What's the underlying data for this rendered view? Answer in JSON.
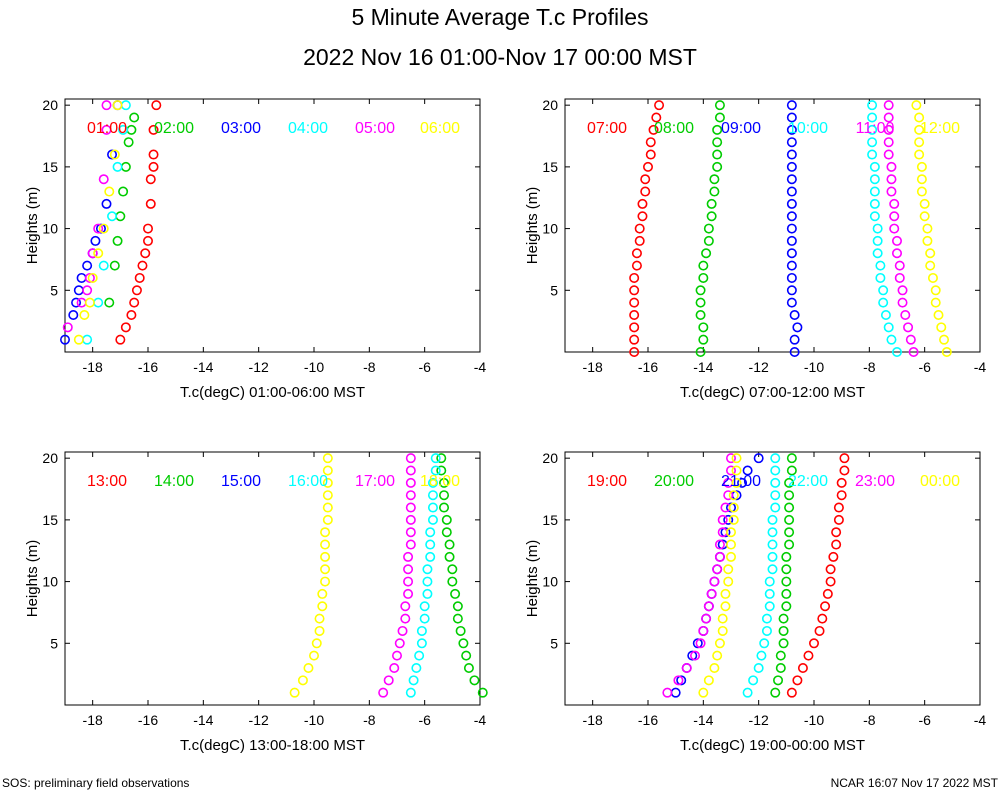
{
  "title": "5 Minute Average T.c Profiles",
  "subtitle": "2022 Nov 16 01:00-Nov 17 00:00 MST",
  "footer": {
    "left": "SOS: preliminary field observations",
    "right": "NCAR 16:07 Nov 17 2022 MST"
  },
  "colors": {
    "red": "#ff0000",
    "green": "#00cc00",
    "blue": "#0000ff",
    "cyan": "#00ffff",
    "magenta": "#ff00ff",
    "yellow": "#ffff00"
  },
  "chart_data": [
    {
      "type": "scatter",
      "xlabel": "T.c(degC) 01:00-06:00 MST",
      "ylabel": "Heights (m)",
      "xlim": [
        -19,
        -4
      ],
      "ylim": [
        0,
        20.5
      ],
      "xticks": [
        -18,
        -16,
        -14,
        -12,
        -10,
        -8,
        -6,
        -4
      ],
      "yticks": [
        5,
        10,
        15,
        20
      ],
      "series": [
        {
          "name": "01:00",
          "color": "#ff0000",
          "x": [
            -17.0,
            -16.8,
            -16.6,
            -16.5,
            -16.4,
            -16.3,
            -16.2,
            -16.1,
            -16.0,
            -16.0,
            -15.9,
            -15.9,
            -15.8,
            -15.8,
            -15.8,
            -15.7
          ],
          "y": [
            1,
            2,
            3,
            4,
            5,
            6,
            7,
            8,
            9,
            10,
            12,
            14,
            15,
            16,
            18,
            20
          ]
        },
        {
          "name": "02:00",
          "color": "#00cc00",
          "x": [
            -17.4,
            -17.2,
            -17.1,
            -17.0,
            -16.9,
            -16.8,
            -16.7,
            -16.6,
            -16.5
          ],
          "y": [
            4,
            7,
            9,
            11,
            13,
            15,
            17,
            18,
            19
          ]
        },
        {
          "name": "03:00",
          "color": "#0000ff",
          "x": [
            -19.0,
            -18.7,
            -18.6,
            -18.5,
            -18.4,
            -18.2,
            -18.0,
            -17.9,
            -17.7,
            -17.5,
            -17.3,
            -17.1
          ],
          "y": [
            1,
            3,
            4,
            5,
            6,
            7,
            8,
            9,
            10,
            12,
            16,
            20
          ]
        },
        {
          "name": "04:00",
          "color": "#00ffff",
          "x": [
            -18.2,
            -17.8,
            -17.6,
            -17.3,
            -17.1,
            -16.9,
            -16.8
          ],
          "y": [
            1,
            4,
            7,
            11,
            15,
            18,
            20
          ]
        },
        {
          "name": "05:00",
          "color": "#ff00ff",
          "x": [
            -18.9,
            -18.4,
            -18.2,
            -18.1,
            -18.0,
            -17.8,
            -17.6,
            -17.5,
            -17.5
          ],
          "y": [
            2,
            4,
            5,
            6,
            8,
            10,
            14,
            18,
            20
          ]
        },
        {
          "name": "06:00",
          "color": "#ffff00",
          "x": [
            -18.5,
            -18.3,
            -18.1,
            -18.0,
            -17.8,
            -17.6,
            -17.4,
            -17.2,
            -17.1
          ],
          "y": [
            1,
            3,
            4,
            6,
            8,
            10,
            13,
            16,
            20
          ]
        }
      ]
    },
    {
      "type": "scatter",
      "xlabel": "T.c(degC) 07:00-12:00 MST",
      "ylabel": "Heights (m)",
      "xlim": [
        -19,
        -4
      ],
      "ylim": [
        0,
        20.5
      ],
      "xticks": [
        -18,
        -16,
        -14,
        -12,
        -10,
        -8,
        -6,
        -4
      ],
      "yticks": [
        5,
        10,
        15,
        20
      ],
      "series": [
        {
          "name": "07:00",
          "color": "#ff0000",
          "x": [
            -16.5,
            -16.5,
            -16.5,
            -16.5,
            -16.5,
            -16.5,
            -16.5,
            -16.4,
            -16.4,
            -16.3,
            -16.3,
            -16.2,
            -16.2,
            -16.1,
            -16.1,
            -16.0,
            -15.9,
            -15.9,
            -15.8,
            -15.7,
            -15.6
          ],
          "y": [
            0,
            1,
            2,
            3,
            4,
            5,
            6,
            7,
            8,
            9,
            10,
            11,
            12,
            13,
            14,
            15,
            16,
            17,
            18,
            19,
            20
          ]
        },
        {
          "name": "08:00",
          "color": "#00cc00",
          "x": [
            -14.1,
            -14.0,
            -14.0,
            -14.1,
            -14.1,
            -14.1,
            -14.0,
            -14.0,
            -13.9,
            -13.8,
            -13.8,
            -13.7,
            -13.7,
            -13.6,
            -13.6,
            -13.5,
            -13.5,
            -13.5,
            -13.5,
            -13.4,
            -13.4
          ],
          "y": [
            0,
            1,
            2,
            3,
            4,
            5,
            6,
            7,
            8,
            9,
            10,
            11,
            12,
            13,
            14,
            15,
            16,
            17,
            18,
            19,
            20
          ]
        },
        {
          "name": "09:00",
          "color": "#0000ff",
          "x": [
            -10.7,
            -10.7,
            -10.6,
            -10.7,
            -10.8,
            -10.8,
            -10.8,
            -10.8,
            -10.8,
            -10.8,
            -10.8,
            -10.8,
            -10.8,
            -10.8,
            -10.8,
            -10.8,
            -10.8,
            -10.8,
            -10.8,
            -10.8,
            -10.8
          ],
          "y": [
            0,
            1,
            2,
            3,
            4,
            5,
            6,
            7,
            8,
            9,
            10,
            11,
            12,
            13,
            14,
            15,
            16,
            17,
            18,
            19,
            20
          ]
        },
        {
          "name": "10:00",
          "color": "#00ffff",
          "x": [
            -7.0,
            -7.2,
            -7.3,
            -7.4,
            -7.5,
            -7.5,
            -7.6,
            -7.6,
            -7.7,
            -7.7,
            -7.7,
            -7.8,
            -7.8,
            -7.8,
            -7.8,
            -7.8,
            -7.9,
            -7.9,
            -7.9,
            -7.9,
            -7.9
          ],
          "y": [
            0,
            1,
            2,
            3,
            4,
            5,
            6,
            7,
            8,
            9,
            10,
            11,
            12,
            13,
            14,
            15,
            16,
            17,
            18,
            19,
            20
          ]
        },
        {
          "name": "11:00",
          "color": "#ff00ff",
          "x": [
            -6.4,
            -6.5,
            -6.6,
            -6.7,
            -6.8,
            -6.8,
            -6.9,
            -6.9,
            -7.0,
            -7.0,
            -7.1,
            -7.1,
            -7.1,
            -7.2,
            -7.2,
            -7.2,
            -7.3,
            -7.3,
            -7.3,
            -7.3,
            -7.3
          ],
          "y": [
            0,
            1,
            2,
            3,
            4,
            5,
            6,
            7,
            8,
            9,
            10,
            11,
            12,
            13,
            14,
            15,
            16,
            17,
            18,
            19,
            20
          ]
        },
        {
          "name": "12:00",
          "color": "#ffff00",
          "x": [
            -5.2,
            -5.3,
            -5.4,
            -5.5,
            -5.6,
            -5.6,
            -5.7,
            -5.8,
            -5.8,
            -5.9,
            -5.9,
            -6.0,
            -6.0,
            -6.1,
            -6.1,
            -6.1,
            -6.2,
            -6.2,
            -6.2,
            -6.2,
            -6.3
          ],
          "y": [
            0,
            1,
            2,
            3,
            4,
            5,
            6,
            7,
            8,
            9,
            10,
            11,
            12,
            13,
            14,
            15,
            16,
            17,
            18,
            19,
            20
          ]
        }
      ]
    },
    {
      "type": "scatter",
      "xlabel": "T.c(degC) 13:00-18:00 MST",
      "ylabel": "Heights (m)",
      "xlim": [
        -19,
        -4
      ],
      "ylim": [
        0,
        20.5
      ],
      "xticks": [
        -18,
        -16,
        -14,
        -12,
        -10,
        -8,
        -6,
        -4
      ],
      "yticks": [
        5,
        10,
        15,
        20
      ],
      "series": [
        {
          "name": "13:00",
          "color": "#ff0000",
          "x": [],
          "y": []
        },
        {
          "name": "14:00",
          "color": "#00cc00",
          "x": [
            -3.9,
            -4.2,
            -4.4,
            -4.5,
            -4.6,
            -4.7,
            -4.8,
            -4.8,
            -4.9,
            -5.0,
            -5.0,
            -5.1,
            -5.1,
            -5.2,
            -5.2,
            -5.3,
            -5.3,
            -5.3,
            -5.4,
            -5.4
          ],
          "y": [
            1,
            2,
            3,
            4,
            5,
            6,
            7,
            8,
            9,
            10,
            11,
            12,
            13,
            14,
            15,
            16,
            17,
            18,
            19,
            20
          ]
        },
        {
          "name": "15:00",
          "color": "#0000ff",
          "x": [],
          "y": []
        },
        {
          "name": "16:00",
          "color": "#00ffff",
          "x": [
            -6.5,
            -6.4,
            -6.3,
            -6.2,
            -6.1,
            -6.1,
            -6.0,
            -6.0,
            -5.9,
            -5.9,
            -5.9,
            -5.8,
            -5.8,
            -5.8,
            -5.7,
            -5.7,
            -5.7,
            -5.7,
            -5.6,
            -5.6
          ],
          "y": [
            1,
            2,
            3,
            4,
            5,
            6,
            7,
            8,
            9,
            10,
            11,
            12,
            13,
            14,
            15,
            16,
            17,
            18,
            19,
            20
          ]
        },
        {
          "name": "17:00",
          "color": "#ff00ff",
          "x": [
            -7.5,
            -7.3,
            -7.1,
            -7.0,
            -6.9,
            -6.8,
            -6.7,
            -6.7,
            -6.6,
            -6.6,
            -6.6,
            -6.6,
            -6.5,
            -6.5,
            -6.5,
            -6.5,
            -6.5,
            -6.5,
            -6.5,
            -6.5
          ],
          "y": [
            1,
            2,
            3,
            4,
            5,
            6,
            7,
            8,
            9,
            10,
            11,
            12,
            13,
            14,
            15,
            16,
            17,
            18,
            19,
            20
          ]
        },
        {
          "name": "18:00",
          "color": "#ffff00",
          "x": [
            -10.7,
            -10.4,
            -10.2,
            -10.0,
            -9.9,
            -9.8,
            -9.8,
            -9.7,
            -9.7,
            -9.6,
            -9.6,
            -9.6,
            -9.6,
            -9.6,
            -9.5,
            -9.5,
            -9.5,
            -9.5,
            -9.5,
            -9.5
          ],
          "y": [
            1,
            2,
            3,
            4,
            5,
            6,
            7,
            8,
            9,
            10,
            11,
            12,
            13,
            14,
            15,
            16,
            17,
            18,
            19,
            20
          ]
        }
      ]
    },
    {
      "type": "scatter",
      "xlabel": "T.c(degC) 19:00-00:00 MST",
      "ylabel": "Heights (m)",
      "xlim": [
        -19,
        -4
      ],
      "ylim": [
        0,
        20.5
      ],
      "xticks": [
        -18,
        -16,
        -14,
        -12,
        -10,
        -8,
        -6,
        -4
      ],
      "yticks": [
        5,
        10,
        15,
        20
      ],
      "series": [
        {
          "name": "19:00",
          "color": "#ff0000",
          "x": [
            -10.8,
            -10.6,
            -10.4,
            -10.2,
            -10.0,
            -9.8,
            -9.7,
            -9.6,
            -9.5,
            -9.4,
            -9.4,
            -9.3,
            -9.2,
            -9.2,
            -9.1,
            -9.1,
            -9.0,
            -9.0,
            -8.9,
            -8.9
          ],
          "y": [
            1,
            2,
            3,
            4,
            5,
            6,
            7,
            8,
            9,
            10,
            11,
            12,
            13,
            14,
            15,
            16,
            17,
            18,
            19,
            20
          ]
        },
        {
          "name": "20:00",
          "color": "#00cc00",
          "x": [
            -11.4,
            -11.3,
            -11.2,
            -11.2,
            -11.1,
            -11.1,
            -11.1,
            -11.0,
            -11.0,
            -11.0,
            -11.0,
            -11.0,
            -10.9,
            -10.9,
            -10.9,
            -10.9,
            -10.9,
            -10.9,
            -10.8,
            -10.8
          ],
          "y": [
            1,
            2,
            3,
            4,
            5,
            6,
            7,
            8,
            9,
            10,
            11,
            12,
            13,
            14,
            15,
            16,
            17,
            18,
            19,
            20
          ]
        },
        {
          "name": "21:00",
          "color": "#0000ff",
          "x": [
            -15.0,
            -14.8,
            -14.6,
            -14.4,
            -14.2,
            -14.0,
            -13.9,
            -13.8,
            -13.7,
            -13.6,
            -13.5,
            -13.4,
            -13.3,
            -13.2,
            -13.1,
            -13.0,
            -12.8,
            -12.6,
            -12.4,
            -12.0
          ],
          "y": [
            1,
            2,
            3,
            4,
            5,
            6,
            7,
            8,
            9,
            10,
            11,
            12,
            13,
            14,
            15,
            16,
            17,
            18,
            19,
            20
          ]
        },
        {
          "name": "22:00",
          "color": "#00ffff",
          "x": [
            -12.4,
            -12.2,
            -12.0,
            -11.9,
            -11.8,
            -11.7,
            -11.7,
            -11.6,
            -11.6,
            -11.6,
            -11.5,
            -11.5,
            -11.5,
            -11.5,
            -11.5,
            -11.4,
            -11.4,
            -11.4,
            -11.4,
            -11.4
          ],
          "y": [
            1,
            2,
            3,
            4,
            5,
            6,
            7,
            8,
            9,
            10,
            11,
            12,
            13,
            14,
            15,
            16,
            17,
            18,
            19,
            20
          ]
        },
        {
          "name": "23:00",
          "color": "#ff00ff",
          "x": [
            -15.3,
            -14.9,
            -14.6,
            -14.3,
            -14.1,
            -14.0,
            -13.9,
            -13.8,
            -13.7,
            -13.6,
            -13.5,
            -13.4,
            -13.4,
            -13.3,
            -13.3,
            -13.2,
            -13.1,
            -13.1,
            -13.0,
            -13.0
          ],
          "y": [
            1,
            2,
            3,
            4,
            5,
            6,
            7,
            8,
            9,
            10,
            11,
            12,
            13,
            14,
            15,
            16,
            17,
            18,
            19,
            20
          ]
        },
        {
          "name": "00:00",
          "color": "#ffff00",
          "x": [
            -14.0,
            -13.8,
            -13.6,
            -13.5,
            -13.4,
            -13.3,
            -13.3,
            -13.2,
            -13.2,
            -13.1,
            -13.1,
            -13.0,
            -13.0,
            -13.0,
            -12.9,
            -12.9,
            -12.9,
            -12.8,
            -12.8,
            -12.8
          ],
          "y": [
            1,
            2,
            3,
            4,
            5,
            6,
            7,
            8,
            9,
            10,
            11,
            12,
            13,
            14,
            15,
            16,
            17,
            18,
            19,
            20
          ]
        }
      ]
    }
  ]
}
